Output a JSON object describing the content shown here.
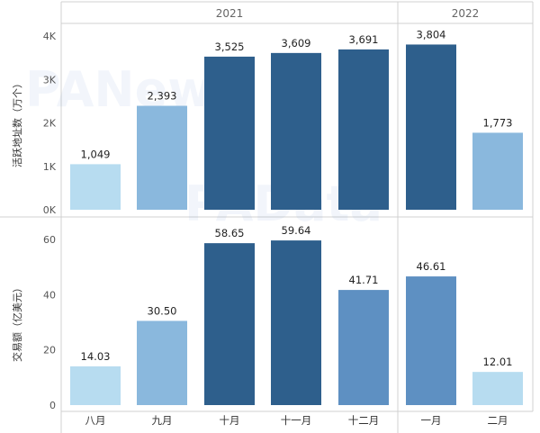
{
  "chart_data": {
    "type": "bar",
    "year_groups": [
      {
        "label": "2021",
        "categories": [
          "八月",
          "九月",
          "十月",
          "十一月",
          "十二月"
        ]
      },
      {
        "label": "2022",
        "categories": [
          "一月",
          "二月"
        ]
      }
    ],
    "categories": [
      "八月",
      "九月",
      "十月",
      "十一月",
      "十二月",
      "一月",
      "二月"
    ],
    "panels": [
      {
        "ylabel": "活跃地址数（万个）",
        "ylim": [
          0,
          4000
        ],
        "yticks": [
          0,
          1000,
          2000,
          3000,
          4000
        ],
        "ytick_labels": [
          "0K",
          "1K",
          "2K",
          "3K",
          "4K"
        ],
        "values": [
          1049,
          2393,
          3525,
          3609,
          3691,
          3804,
          1773
        ],
        "data_labels": [
          "1,049",
          "2,393",
          "3,525",
          "3,609",
          "3,691",
          "3,804",
          "1,773"
        ]
      },
      {
        "ylabel": "交易额（亿美元）",
        "ylim": [
          0,
          65
        ],
        "yticks": [
          0,
          20,
          40,
          60
        ],
        "ytick_labels": [
          "0",
          "20",
          "40",
          "60"
        ],
        "values": [
          14.03,
          30.5,
          58.65,
          59.64,
          41.71,
          46.61,
          12.01
        ],
        "data_labels": [
          "14.03",
          "30.50",
          "58.65",
          "59.64",
          "41.71",
          "46.61",
          "12.01"
        ]
      }
    ],
    "color_scale": [
      "#b7dcf0",
      "#8ab8dd",
      "#5e90c2",
      "#2e5f8c"
    ],
    "grid": false,
    "watermarks": [
      "PANews",
      "PAData"
    ]
  }
}
